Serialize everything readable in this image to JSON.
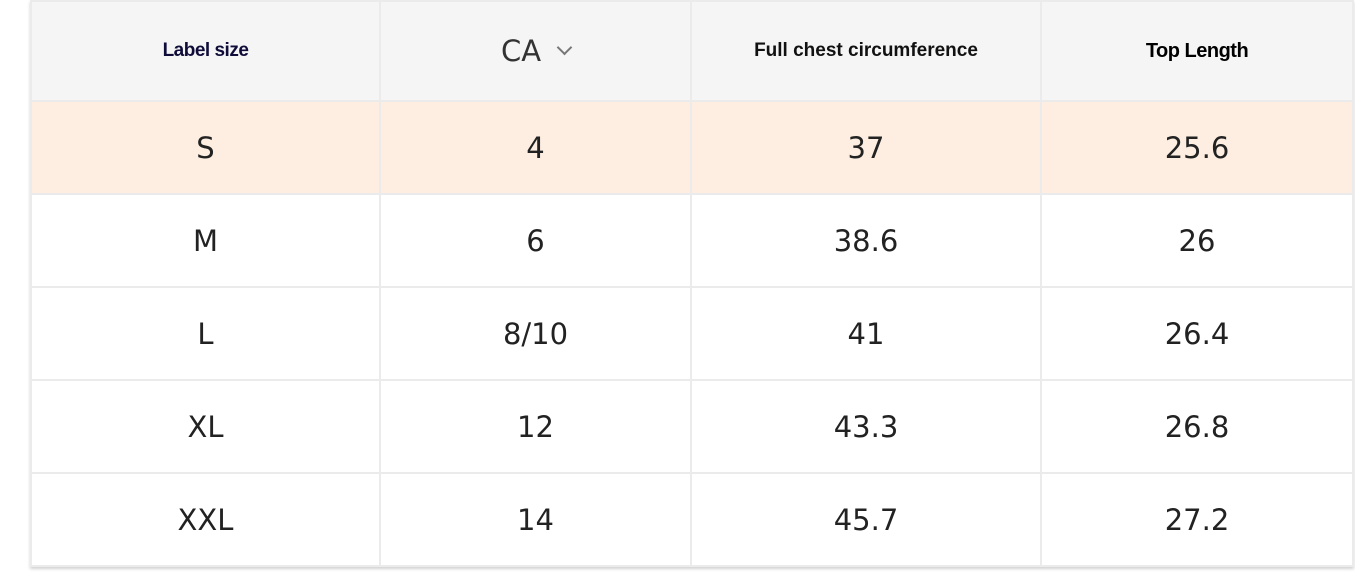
{
  "table": {
    "headers": {
      "label_size": "Label size",
      "region": "CA",
      "chest": "Full chest circumference",
      "top_length": "Top Length"
    },
    "region_dropdown_icon": "chevron-down-icon",
    "highlight_color": "#fdeee1",
    "rows": [
      {
        "size": "S",
        "region": "4",
        "chest": "37",
        "length": "25.6",
        "highlighted": true
      },
      {
        "size": "M",
        "region": "6",
        "chest": "38.6",
        "length": "26"
      },
      {
        "size": "L",
        "region": "8/10",
        "chest": "41",
        "length": "26.4"
      },
      {
        "size": "XL",
        "region": "12",
        "chest": "43.3",
        "length": "26.8"
      },
      {
        "size": "XXL",
        "region": "14",
        "chest": "45.7",
        "length": "27.2"
      }
    ]
  }
}
